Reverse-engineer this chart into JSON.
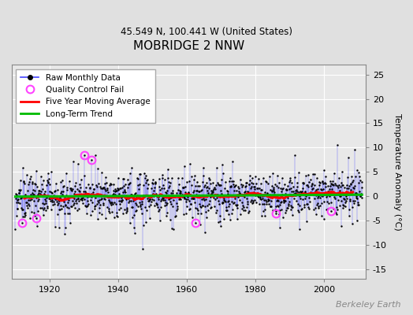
{
  "title": "MOBRIDGE 2 NNW",
  "subtitle": "45.549 N, 100.441 W (United States)",
  "ylabel": "Temperature Anomaly (°C)",
  "watermark": "Berkeley Earth",
  "year_start": 1910,
  "year_end": 2011,
  "ylim": [
    -17,
    27
  ],
  "yticks": [
    -15,
    -10,
    -5,
    0,
    5,
    10,
    15,
    20,
    25
  ],
  "xticks": [
    1920,
    1940,
    1960,
    1980,
    2000
  ],
  "bg_color": "#e0e0e0",
  "plot_bg_color": "#e8e8e8",
  "raw_line_color": "#4444ff",
  "raw_marker_color": "#000000",
  "qc_fail_color": "#ff44ff",
  "moving_avg_color": "#ff0000",
  "trend_color": "#00bb00",
  "grid_color": "#ffffff",
  "random_seed": 15,
  "n_months": 1140
}
